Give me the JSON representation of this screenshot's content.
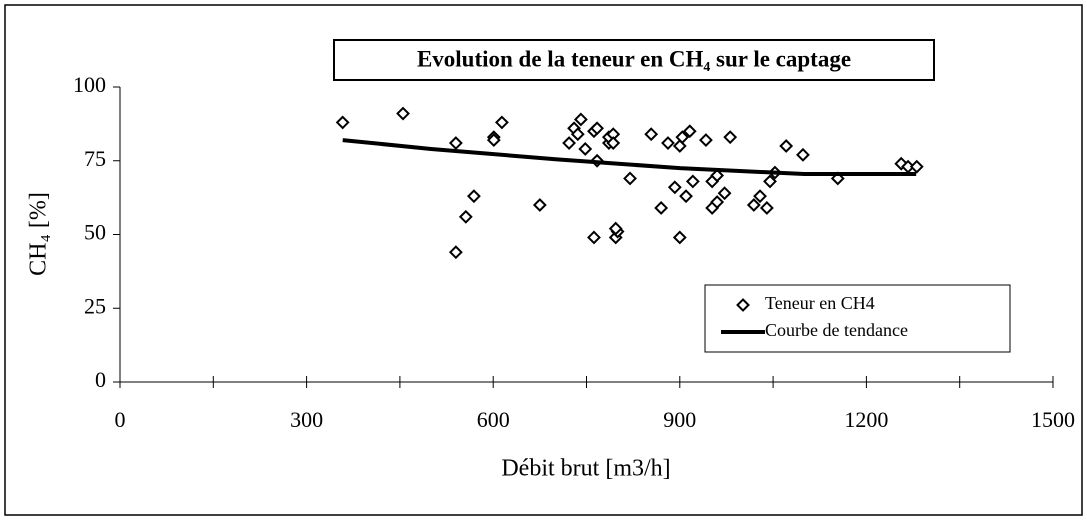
{
  "chart_data": {
    "type": "scatter",
    "title": "Evolution de la teneur en CH₄ sur le captage",
    "x_label": "Débit brut [m3/h]",
    "y_label": "CH₄ [%]",
    "xlim": [
      0,
      1500
    ],
    "xticks": [
      0,
      300,
      600,
      900,
      1200,
      1500
    ],
    "xminor_ticks": [
      150,
      450,
      750,
      1050,
      1350
    ],
    "ylim": [
      0,
      100
    ],
    "yticks": [
      0,
      25,
      50,
      75,
      100
    ],
    "grid": false,
    "legend": "lower right",
    "series": [
      {
        "name": "Teneur en CH4",
        "color": "#000000",
        "marker": "diamond",
        "x": [
          358,
          455,
          540,
          540,
          556,
          569,
          601,
          601,
          614,
          675,
          722,
          730,
          736,
          741,
          748,
          762,
          767,
          767,
          762,
          786,
          786,
          793,
          793,
          797,
          800,
          797,
          820,
          854,
          870,
          881,
          892,
          900,
          904,
          900,
          910,
          916,
          921,
          942,
          952,
          952,
          960,
          960,
          972,
          981,
          1019,
          1029,
          1040,
          1045,
          1053,
          1071,
          1098,
          1154,
          1256,
          1267,
          1281
        ],
        "values": [
          88,
          91,
          81,
          44,
          56,
          63,
          83,
          82,
          88,
          60,
          81,
          86,
          84,
          89,
          79,
          85,
          86,
          75,
          49,
          81,
          83,
          84,
          81,
          49,
          51,
          52,
          69,
          84,
          59,
          81,
          66,
          80,
          83,
          49,
          63,
          85,
          68,
          82,
          59,
          68,
          70,
          61,
          64,
          83,
          60,
          63,
          59,
          68,
          71,
          80,
          77,
          69,
          74,
          73,
          73
        ]
      },
      {
        "name": "Courbe de tendance",
        "color": "#000000",
        "marker": "line",
        "x": [
          358,
          500,
          700,
          900,
          1100,
          1280
        ],
        "values": [
          82,
          79,
          75.5,
          72.5,
          70.5,
          70.5
        ]
      }
    ]
  }
}
